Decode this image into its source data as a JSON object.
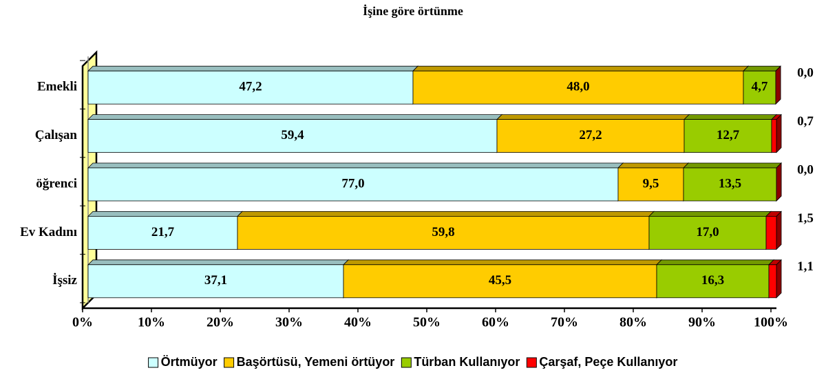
{
  "chart_data": {
    "type": "stacked_bar_horizontal",
    "title": "İşine göre örtünme",
    "categories": [
      "Emekli",
      "Çalışan",
      "öğrenci",
      "Ev Kadını",
      "İşsiz"
    ],
    "series": [
      {
        "name": "Örtmüyor",
        "color": "#ccffff",
        "values": [
          47.2,
          59.4,
          77.0,
          21.7,
          37.1
        ],
        "value_labels": [
          "47,2",
          "59,4",
          "77,0",
          "21,7",
          "37,1"
        ]
      },
      {
        "name": "Başörtüsü, Yemeni örtüyor",
        "color": "#ffcc00",
        "values": [
          48.0,
          27.2,
          9.5,
          59.8,
          45.5
        ],
        "value_labels": [
          "48,0",
          "27,2",
          "9,5",
          "59,8",
          "45,5"
        ]
      },
      {
        "name": "Türban Kullanıyor",
        "color": "#99cc00",
        "values": [
          4.7,
          12.7,
          13.5,
          17.0,
          16.3
        ],
        "value_labels": [
          "4,7",
          "12,7",
          "13,5",
          "17,0",
          "16,3"
        ]
      },
      {
        "name": "Çarşaf, Peçe Kullanıyor",
        "color": "#ff0000",
        "values": [
          0.0,
          0.7,
          0.0,
          1.5,
          1.1
        ],
        "value_labels": [
          "0,0",
          "0,7",
          "0,0",
          "1,5",
          "1,1"
        ]
      }
    ],
    "xlim": [
      0,
      100
    ],
    "xticks": [
      {
        "value": 0,
        "label": "0%"
      },
      {
        "value": 10,
        "label": "10%"
      },
      {
        "value": 20,
        "label": "20%"
      },
      {
        "value": 30,
        "label": "30%"
      },
      {
        "value": 40,
        "label": "40%"
      },
      {
        "value": 50,
        "label": "50%"
      },
      {
        "value": 60,
        "label": "60%"
      },
      {
        "value": 70,
        "label": "70%"
      },
      {
        "value": 80,
        "label": "80%"
      },
      {
        "value": 90,
        "label": "90%"
      },
      {
        "value": 100,
        "label": "100%"
      }
    ],
    "wall_color": "#ffff99"
  }
}
